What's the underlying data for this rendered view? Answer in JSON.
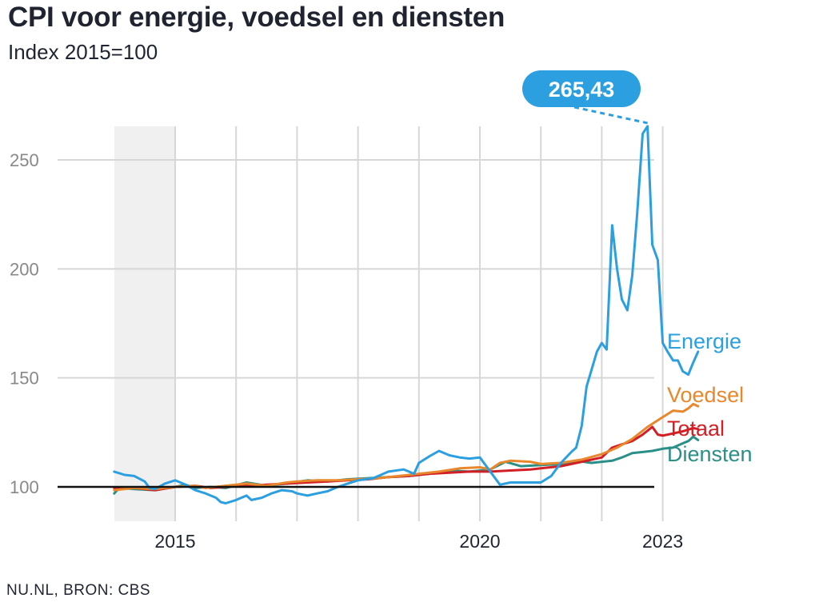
{
  "header": {
    "title": "CPI voor energie, voedsel en diensten",
    "subtitle": "Index 2015=100"
  },
  "footer": {
    "source": "NU.NL, BRON: CBS"
  },
  "callout": {
    "label": "265,43",
    "color": "#2b9fe0"
  },
  "chart_data": {
    "type": "line",
    "title": "CPI voor energie, voedsel en diensten",
    "subtitle": "Index 2015=100",
    "xlabel": "",
    "ylabel": "",
    "xlim": [
      2014.0,
      2023.55
    ],
    "ylim": [
      85,
      270
    ],
    "x_ticks": [
      {
        "value": 2015,
        "label": "2015"
      },
      {
        "value": 2020,
        "label": "2020"
      },
      {
        "value": 2023,
        "label": "2023"
      }
    ],
    "y_ticks": [
      {
        "value": 100,
        "label": "100"
      },
      {
        "value": 150,
        "label": "150"
      },
      {
        "value": 200,
        "label": "200"
      },
      {
        "value": 250,
        "label": "250"
      }
    ],
    "grid": true,
    "vertical_gridlines": [
      2015,
      2016,
      2017,
      2018,
      2019,
      2020,
      2021,
      2022,
      2023
    ],
    "baseline": 100,
    "shaded_period": [
      2014.0,
      2015.0
    ],
    "legend": "direct labels at line ends",
    "series": [
      {
        "name": "Energie",
        "color": "#2b9fe0",
        "points": [
          [
            2014.0,
            107
          ],
          [
            2014.17,
            105.5
          ],
          [
            2014.33,
            105
          ],
          [
            2014.5,
            102.5
          ],
          [
            2014.58,
            99.5
          ],
          [
            2014.67,
            99
          ],
          [
            2014.83,
            101.5
          ],
          [
            2015.0,
            103
          ],
          [
            2015.17,
            101
          ],
          [
            2015.33,
            98.5
          ],
          [
            2015.5,
            97
          ],
          [
            2015.67,
            95
          ],
          [
            2015.75,
            93
          ],
          [
            2015.83,
            92.5
          ],
          [
            2016.0,
            94
          ],
          [
            2016.17,
            96
          ],
          [
            2016.25,
            94
          ],
          [
            2016.42,
            95
          ],
          [
            2016.58,
            97
          ],
          [
            2016.75,
            98.5
          ],
          [
            2016.92,
            98
          ],
          [
            2017.0,
            97
          ],
          [
            2017.17,
            96
          ],
          [
            2017.33,
            97
          ],
          [
            2017.5,
            98
          ],
          [
            2017.67,
            100
          ],
          [
            2017.83,
            101.5
          ],
          [
            2018.0,
            103
          ],
          [
            2018.25,
            104
          ],
          [
            2018.5,
            107
          ],
          [
            2018.75,
            108
          ],
          [
            2018.92,
            106
          ],
          [
            2019.0,
            111
          ],
          [
            2019.17,
            114
          ],
          [
            2019.33,
            116.5
          ],
          [
            2019.5,
            114.5
          ],
          [
            2019.67,
            113.5
          ],
          [
            2019.83,
            113
          ],
          [
            2020.0,
            113.5
          ],
          [
            2020.17,
            107
          ],
          [
            2020.33,
            101
          ],
          [
            2020.5,
            102
          ],
          [
            2020.67,
            102
          ],
          [
            2020.83,
            102
          ],
          [
            2021.0,
            102
          ],
          [
            2021.17,
            105
          ],
          [
            2021.33,
            111
          ],
          [
            2021.5,
            116
          ],
          [
            2021.58,
            118
          ],
          [
            2021.67,
            128
          ],
          [
            2021.75,
            146
          ],
          [
            2021.92,
            162
          ],
          [
            2022.0,
            166
          ],
          [
            2022.08,
            163
          ],
          [
            2022.17,
            220
          ],
          [
            2022.25,
            200
          ],
          [
            2022.33,
            186
          ],
          [
            2022.42,
            181
          ],
          [
            2022.5,
            197
          ],
          [
            2022.58,
            225
          ],
          [
            2022.67,
            262
          ],
          [
            2022.75,
            265.43
          ],
          [
            2022.83,
            211
          ],
          [
            2022.92,
            204
          ],
          [
            2023.0,
            166
          ],
          [
            2023.08,
            162
          ],
          [
            2023.17,
            158
          ],
          [
            2023.25,
            158
          ],
          [
            2023.33,
            153
          ],
          [
            2023.42,
            151.5
          ],
          [
            2023.5,
            157
          ],
          [
            2023.58,
            162
          ]
        ]
      },
      {
        "name": "Voedsel",
        "color": "#e8872b",
        "points": [
          [
            2014.0,
            98.5
          ],
          [
            2014.33,
            99.5
          ],
          [
            2014.67,
            99
          ],
          [
            2015.0,
            100
          ],
          [
            2015.33,
            100.5
          ],
          [
            2015.5,
            99.5
          ],
          [
            2015.83,
            100.5
          ],
          [
            2016.17,
            101.5
          ],
          [
            2016.5,
            100.5
          ],
          [
            2016.83,
            102
          ],
          [
            2017.0,
            102.5
          ],
          [
            2017.33,
            103
          ],
          [
            2017.67,
            103
          ],
          [
            2018.0,
            103.5
          ],
          [
            2018.33,
            104
          ],
          [
            2018.67,
            105
          ],
          [
            2019.0,
            106
          ],
          [
            2019.33,
            107
          ],
          [
            2019.67,
            108.5
          ],
          [
            2020.0,
            109
          ],
          [
            2020.17,
            108
          ],
          [
            2020.33,
            111
          ],
          [
            2020.5,
            112
          ],
          [
            2020.83,
            111.5
          ],
          [
            2021.0,
            110.5
          ],
          [
            2021.33,
            111
          ],
          [
            2021.67,
            112.5
          ],
          [
            2022.0,
            115
          ],
          [
            2022.25,
            118
          ],
          [
            2022.5,
            122
          ],
          [
            2022.75,
            127.5
          ],
          [
            2023.0,
            132
          ],
          [
            2023.17,
            135
          ],
          [
            2023.33,
            134.5
          ],
          [
            2023.42,
            136
          ],
          [
            2023.5,
            138
          ],
          [
            2023.58,
            137
          ]
        ]
      },
      {
        "name": "Totaal",
        "color": "#d21f26",
        "points": [
          [
            2014.0,
            99.5
          ],
          [
            2014.33,
            99.5
          ],
          [
            2014.67,
            98.5
          ],
          [
            2015.0,
            100
          ],
          [
            2015.33,
            100.5
          ],
          [
            2015.58,
            99.5
          ],
          [
            2015.83,
            100
          ],
          [
            2016.17,
            100.5
          ],
          [
            2016.5,
            101
          ],
          [
            2016.83,
            101.5
          ],
          [
            2017.17,
            102
          ],
          [
            2017.5,
            102.5
          ],
          [
            2017.83,
            103
          ],
          [
            2018.17,
            103.5
          ],
          [
            2018.5,
            104.5
          ],
          [
            2018.83,
            105
          ],
          [
            2019.17,
            106
          ],
          [
            2019.5,
            106.5
          ],
          [
            2019.83,
            107
          ],
          [
            2020.17,
            107
          ],
          [
            2020.5,
            107.5
          ],
          [
            2020.83,
            108
          ],
          [
            2021.0,
            108.5
          ],
          [
            2021.33,
            109.5
          ],
          [
            2021.67,
            111.5
          ],
          [
            2022.0,
            113.5
          ],
          [
            2022.17,
            118
          ],
          [
            2022.33,
            119.5
          ],
          [
            2022.5,
            121
          ],
          [
            2022.67,
            124
          ],
          [
            2022.83,
            127.5
          ],
          [
            2022.92,
            124
          ],
          [
            2023.0,
            123.5
          ],
          [
            2023.17,
            124.5
          ],
          [
            2023.33,
            125.5
          ],
          [
            2023.5,
            127
          ],
          [
            2023.58,
            126.5
          ]
        ]
      },
      {
        "name": "Diensten",
        "color": "#2a8f87",
        "points": [
          [
            2014.0,
            97
          ],
          [
            2014.08,
            99.5
          ],
          [
            2014.33,
            99
          ],
          [
            2014.67,
            98.5
          ],
          [
            2015.0,
            100
          ],
          [
            2015.17,
            101
          ],
          [
            2015.33,
            99.5
          ],
          [
            2015.58,
            100
          ],
          [
            2015.83,
            99.5
          ],
          [
            2016.17,
            102
          ],
          [
            2016.5,
            100.5
          ],
          [
            2016.83,
            101.5
          ],
          [
            2017.17,
            103
          ],
          [
            2017.5,
            102.5
          ],
          [
            2017.83,
            103.5
          ],
          [
            2018.17,
            104
          ],
          [
            2018.5,
            104.5
          ],
          [
            2018.83,
            105
          ],
          [
            2019.17,
            106
          ],
          [
            2019.5,
            107.5
          ],
          [
            2019.83,
            107
          ],
          [
            2020.17,
            108
          ],
          [
            2020.42,
            111.5
          ],
          [
            2020.67,
            109.5
          ],
          [
            2021.0,
            110
          ],
          [
            2021.33,
            110.5
          ],
          [
            2021.58,
            112
          ],
          [
            2021.83,
            111
          ],
          [
            2022.0,
            111.5
          ],
          [
            2022.17,
            112
          ],
          [
            2022.33,
            113.5
          ],
          [
            2022.5,
            115.5
          ],
          [
            2022.67,
            116
          ],
          [
            2022.83,
            116.5
          ],
          [
            2023.0,
            117.5
          ],
          [
            2023.17,
            118
          ],
          [
            2023.33,
            120
          ],
          [
            2023.42,
            121
          ],
          [
            2023.5,
            123
          ],
          [
            2023.58,
            121.5
          ]
        ]
      }
    ]
  }
}
